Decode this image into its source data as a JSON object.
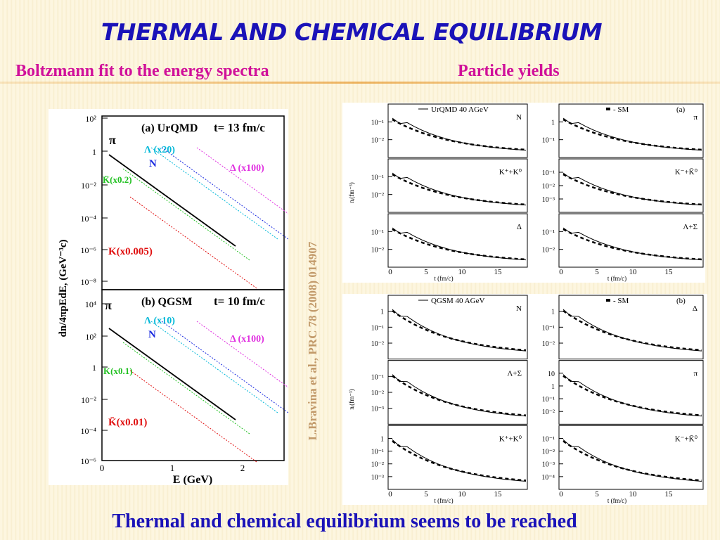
{
  "header": {
    "title": "THERMAL AND CHEMICAL EQUILIBRIUM",
    "left_subtitle": "Boltzmann fit to the energy spectra",
    "right_subtitle": "Particle yields"
  },
  "left_figure": {
    "y_label": "dn/4πpEdE, (GeV⁻³c)",
    "x_label": "E (GeV)",
    "x_ticks": [
      "0",
      "1",
      "2"
    ],
    "panels": [
      {
        "label": "(a) UrQMD",
        "time": "t= 13 fm/c",
        "y_ticks": [
          "10²",
          "1",
          "10⁻²",
          "10⁻⁴",
          "10⁻⁶",
          "10⁻⁸"
        ],
        "annotations": [
          "π",
          "Λ (x20)",
          "N",
          "Δ (x100)",
          "K̄(x0.2)",
          "K(x0.005)"
        ]
      },
      {
        "label": "(b) QGSM",
        "time": "t= 10 fm/c",
        "y_ticks": [
          "10⁴",
          "10²",
          "1",
          "10⁻²",
          "10⁻⁴",
          "10⁻⁶"
        ],
        "annotations": [
          "π",
          "Λ (x10)",
          "N",
          "Δ (x100)",
          "K(x0.1)",
          "K̄(x0.01)"
        ]
      }
    ]
  },
  "citation": "L.Bravina et al.,  PRC 78 (2008) 014907",
  "right_figures": [
    {
      "legend_model": "UrQMD 40 AGeV",
      "legend_sm": "- SM",
      "panel_label": "(a)",
      "y_label": "nᵢ(fm⁻³)",
      "x_label": "t (fm/c)",
      "x_ticks": [
        "0",
        "5",
        "10",
        "15"
      ],
      "cells": [
        [
          {
            "label": "N",
            "y_ticks": [
              "10⁻¹",
              "10⁻²"
            ]
          },
          {
            "label": "π",
            "y_ticks": [
              "1",
              "10⁻¹"
            ]
          }
        ],
        [
          {
            "label": "K⁺+K⁰",
            "y_ticks": [
              "10⁻¹",
              "10⁻²"
            ]
          },
          {
            "label": "K⁻+K̄⁰",
            "y_ticks": [
              "10⁻¹",
              "10⁻²",
              "10⁻³"
            ]
          }
        ],
        [
          {
            "label": "Δ",
            "y_ticks": [
              "10⁻¹",
              "10⁻²"
            ]
          },
          {
            "label": "Λ+Σ",
            "y_ticks": [
              "10⁻¹",
              "10⁻²"
            ]
          }
        ]
      ]
    },
    {
      "legend_model": "QGSM 40 AGeV",
      "legend_sm": "- SM",
      "panel_label": "(b)",
      "y_label": "nᵢ(fm⁻³)",
      "x_label": "t (fm/c)",
      "x_ticks": [
        "0",
        "5",
        "10",
        "15"
      ],
      "cells": [
        [
          {
            "label": "N",
            "y_ticks": [
              "1",
              "10⁻¹",
              "10⁻²"
            ]
          },
          {
            "label": "Δ",
            "y_ticks": [
              "1",
              "10⁻¹",
              "10⁻²"
            ]
          }
        ],
        [
          {
            "label": "Λ+Σ",
            "y_ticks": [
              "10⁻¹",
              "10⁻²",
              "10⁻³"
            ]
          },
          {
            "label": "π",
            "y_ticks": [
              "10",
              "1",
              "10⁻¹",
              "10⁻²"
            ]
          }
        ],
        [
          {
            "label": "K⁺+K⁰",
            "y_ticks": [
              "1",
              "10⁻¹",
              "10⁻²",
              "10⁻³"
            ]
          },
          {
            "label": "K⁻+K̄⁰",
            "y_ticks": [
              "10⁻¹",
              "10⁻²",
              "10⁻³",
              "10⁻⁴"
            ]
          }
        ]
      ]
    }
  ],
  "footer": "Thermal and chemical equilibrium seems to be reached"
}
